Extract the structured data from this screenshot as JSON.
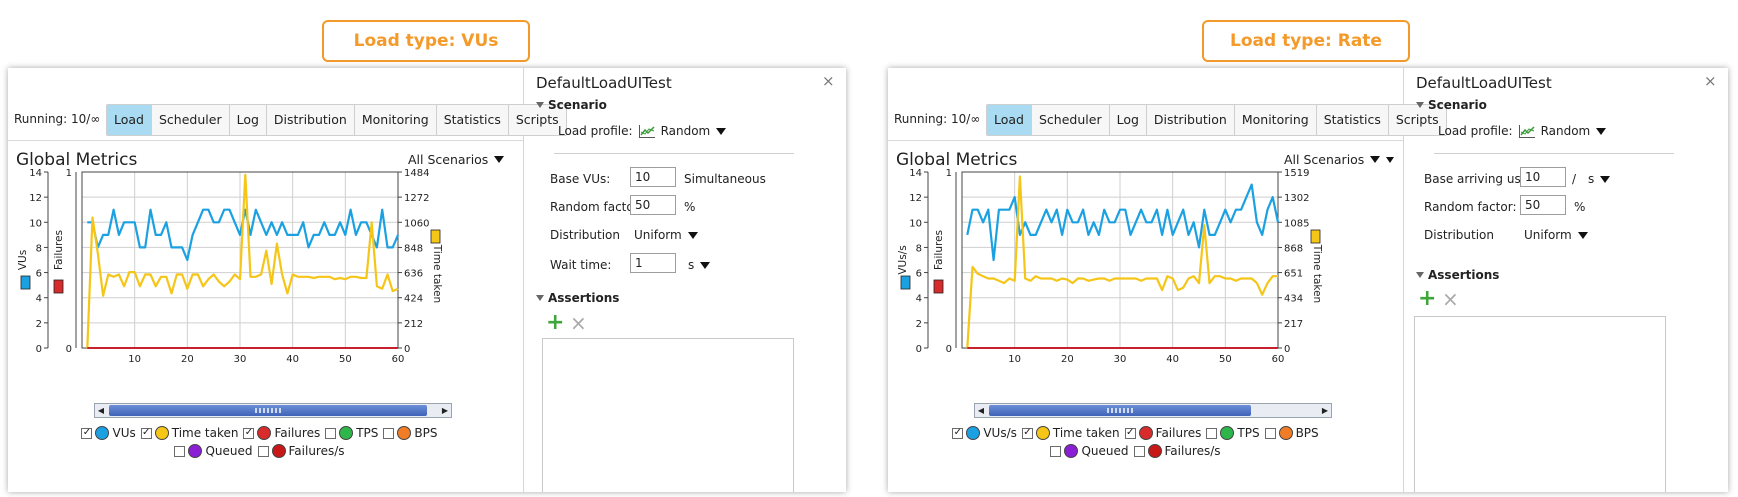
{
  "callouts": {
    "left": "Load type: VUs",
    "right": "Load type: Rate"
  },
  "left": {
    "running": "Running: 10/∞",
    "tabs": [
      "Load",
      "Scheduler",
      "Log",
      "Distribution",
      "Monitoring",
      "Statistics",
      "Scripts"
    ],
    "active_tab": "Load",
    "global_metrics": "Global Metrics",
    "all_scenarios": "All Scenarios",
    "chart_data": {
      "type": "line",
      "x": [
        1,
        2,
        3,
        4,
        5,
        6,
        7,
        8,
        9,
        10,
        11,
        12,
        13,
        14,
        15,
        16,
        17,
        18,
        19,
        20,
        21,
        22,
        23,
        24,
        25,
        26,
        27,
        28,
        29,
        30,
        31,
        32,
        33,
        34,
        35,
        36,
        37,
        38,
        39,
        40,
        41,
        42,
        43,
        44,
        45,
        46,
        47,
        48,
        49,
        50,
        51,
        52,
        53,
        54,
        55,
        56,
        57,
        58,
        59,
        60
      ],
      "x_ticks": [
        10,
        20,
        30,
        40,
        50,
        60
      ],
      "xlim": [
        0,
        60
      ],
      "y_left_label": "VUs",
      "y_left_ticks": [
        0,
        2,
        4,
        6,
        8,
        10,
        12,
        14
      ],
      "y_left_lim": [
        0,
        14
      ],
      "y_failures_label": "Failures",
      "y_failures_ticks": [
        0,
        1
      ],
      "y_right_label": "Time taken",
      "y_right_ticks": [
        0,
        212,
        424,
        636,
        848,
        1060,
        1272,
        1484
      ],
      "y_right_lim": [
        0,
        1484
      ],
      "series": [
        {
          "name": "VUs",
          "axis": "left",
          "color": "#1ba1e2",
          "values": [
            10,
            10,
            8,
            9,
            9,
            11,
            9,
            10,
            10,
            10,
            8,
            8,
            11,
            9,
            9,
            10,
            8,
            8,
            8,
            7,
            9,
            10,
            11,
            11,
            10,
            10,
            11,
            11,
            10,
            9,
            11,
            9,
            11,
            10,
            9,
            10,
            9,
            10,
            9,
            9,
            9,
            10,
            8,
            9,
            9,
            10,
            9,
            9,
            10,
            9,
            11,
            9,
            10,
            10,
            9,
            8,
            11,
            8,
            8,
            9
          ]
        },
        {
          "name": "Time taken",
          "axis": "right",
          "color": "#f5c518",
          "values": [
            0,
            1100,
            800,
            440,
            620,
            600,
            620,
            520,
            640,
            640,
            520,
            620,
            620,
            520,
            600,
            600,
            460,
            620,
            620,
            500,
            620,
            620,
            520,
            580,
            620,
            560,
            520,
            560,
            620,
            580,
            1460,
            600,
            600,
            620,
            820,
            540,
            880,
            620,
            460,
            620,
            600,
            600,
            600,
            590,
            600,
            600,
            600,
            580,
            590,
            580,
            600,
            600,
            590,
            590,
            1060,
            520,
            500,
            620,
            480,
            500
          ]
        },
        {
          "name": "Failures",
          "axis": "failures",
          "color": "#c9202e",
          "values": [
            0,
            0,
            0,
            0,
            0,
            0,
            0,
            0,
            0,
            0,
            0,
            0,
            0,
            0,
            0,
            0,
            0,
            0,
            0,
            0,
            0,
            0,
            0,
            0,
            0,
            0,
            0,
            0,
            0,
            0,
            0,
            0,
            0,
            0,
            0,
            0,
            0,
            0,
            0,
            0,
            0,
            0,
            0,
            0,
            0,
            0,
            0,
            0,
            0,
            0,
            0,
            0,
            0,
            0,
            0,
            0,
            0,
            0,
            0,
            0
          ]
        }
      ]
    },
    "legend": [
      {
        "label": "VUs",
        "checked": true,
        "color": "#1ba1e2"
      },
      {
        "label": "Time taken",
        "checked": true,
        "color": "#f5c518"
      },
      {
        "label": "Failures",
        "checked": true,
        "color": "#d82b2b"
      },
      {
        "label": "TPS",
        "checked": false,
        "color": "#2fb64a"
      },
      {
        "label": "BPS",
        "checked": false,
        "color": "#f07d25"
      },
      {
        "label": "Queued",
        "checked": false,
        "color": "#8a1fd6"
      },
      {
        "label": "Failures/s",
        "checked": false,
        "color": "#c71717"
      }
    ],
    "panel": {
      "title": "DefaultLoadUITest",
      "close": "×",
      "scenario": "Scenario",
      "load_profile_label": "Load profile:",
      "load_profile_value": "Random",
      "base_label": "Base VUs:",
      "base_value": "10",
      "base_suffix": "Simultaneous",
      "random_label": "Random factor:",
      "random_value": "50",
      "random_suffix": "%",
      "distribution_label": "Distribution",
      "distribution_value": "Uniform",
      "wait_label": "Wait time:",
      "wait_value": "1",
      "wait_unit": "s",
      "assertions": "Assertions",
      "add": "+",
      "remove": "×"
    }
  },
  "right": {
    "running": "Running: 10/∞",
    "tabs": [
      "Load",
      "Scheduler",
      "Log",
      "Distribution",
      "Monitoring",
      "Statistics",
      "Scripts"
    ],
    "active_tab": "Load",
    "global_metrics": "Global Metrics",
    "all_scenarios": "All Scenarios",
    "chart_data": {
      "type": "line",
      "x": [
        1,
        2,
        3,
        4,
        5,
        6,
        7,
        8,
        9,
        10,
        11,
        12,
        13,
        14,
        15,
        16,
        17,
        18,
        19,
        20,
        21,
        22,
        23,
        24,
        25,
        26,
        27,
        28,
        29,
        30,
        31,
        32,
        33,
        34,
        35,
        36,
        37,
        38,
        39,
        40,
        41,
        42,
        43,
        44,
        45,
        46,
        47,
        48,
        49,
        50,
        51,
        52,
        53,
        54,
        55,
        56,
        57,
        58,
        59,
        60
      ],
      "x_ticks": [
        10,
        20,
        30,
        40,
        50,
        60
      ],
      "xlim": [
        0,
        60
      ],
      "y_left_label": "VUs/s",
      "y_left_ticks": [
        0,
        2,
        4,
        6,
        8,
        10,
        12,
        14
      ],
      "y_left_lim": [
        0,
        14
      ],
      "y_failures_label": "Failures",
      "y_failures_ticks": [
        0,
        1
      ],
      "y_right_label": "Time taken",
      "y_right_ticks": [
        0,
        217,
        434,
        651,
        868,
        1085,
        1302,
        1519
      ],
      "y_right_lim": [
        0,
        1519
      ],
      "series": [
        {
          "name": "VUs/s",
          "axis": "left",
          "color": "#1ba1e2",
          "values": [
            9,
            11,
            11,
            10,
            11,
            7,
            11,
            11,
            11,
            12,
            9,
            10,
            9,
            9,
            10,
            11,
            10,
            11,
            9,
            11,
            10,
            10,
            11,
            9,
            10,
            9,
            11,
            10,
            10,
            11,
            11,
            9,
            10,
            11,
            10,
            10,
            11,
            9,
            11,
            9,
            10,
            11,
            9,
            10,
            8,
            11,
            9,
            9,
            10,
            11,
            10,
            11,
            11,
            12,
            13,
            10,
            9,
            11,
            12,
            10
          ]
        },
        {
          "name": "Time taken",
          "axis": "right",
          "color": "#f5c518",
          "values": [
            0,
            700,
            640,
            620,
            600,
            600,
            580,
            560,
            600,
            580,
            1480,
            600,
            580,
            620,
            600,
            600,
            600,
            580,
            600,
            590,
            560,
            600,
            600,
            580,
            590,
            600,
            600,
            580,
            600,
            600,
            600,
            600,
            600,
            580,
            600,
            600,
            600,
            500,
            620,
            600,
            500,
            520,
            600,
            620,
            560,
            1060,
            560,
            620,
            620,
            600,
            600,
            580,
            600,
            600,
            600,
            560,
            460,
            560,
            620,
            620
          ]
        },
        {
          "name": "Failures",
          "axis": "failures",
          "color": "#c9202e",
          "values": [
            0,
            0,
            0,
            0,
            0,
            0,
            0,
            0,
            0,
            0,
            0,
            0,
            0,
            0,
            0,
            0,
            0,
            0,
            0,
            0,
            0,
            0,
            0,
            0,
            0,
            0,
            0,
            0,
            0,
            0,
            0,
            0,
            0,
            0,
            0,
            0,
            0,
            0,
            0,
            0,
            0,
            0,
            0,
            0,
            0,
            0,
            0,
            0,
            0,
            0,
            0,
            0,
            0,
            0,
            0,
            0,
            0,
            0,
            0,
            0
          ]
        }
      ]
    },
    "legend": [
      {
        "label": "VUs/s",
        "checked": true,
        "color": "#1ba1e2"
      },
      {
        "label": "Time taken",
        "checked": true,
        "color": "#f5c518"
      },
      {
        "label": "Failures",
        "checked": true,
        "color": "#d82b2b"
      },
      {
        "label": "TPS",
        "checked": false,
        "color": "#2fb64a"
      },
      {
        "label": "BPS",
        "checked": false,
        "color": "#f07d25"
      },
      {
        "label": "Queued",
        "checked": false,
        "color": "#8a1fd6"
      },
      {
        "label": "Failures/s",
        "checked": false,
        "color": "#c71717"
      }
    ],
    "panel": {
      "title": "DefaultLoadUITest",
      "close": "×",
      "scenario": "Scenario",
      "load_profile_label": "Load profile:",
      "load_profile_value": "Random",
      "base_label": "Base arriving users:",
      "base_value": "10",
      "base_suffix": "/",
      "base_unit": "s",
      "random_label": "Random factor:",
      "random_value": "50",
      "random_suffix": "%",
      "distribution_label": "Distribution",
      "distribution_value": "Uniform",
      "assertions": "Assertions",
      "add": "+",
      "remove": "×"
    }
  },
  "colors": {
    "active_tab": "#a9dcf3",
    "callout": "#f39a2a",
    "scroll_thumb": "#4a6fc4"
  }
}
